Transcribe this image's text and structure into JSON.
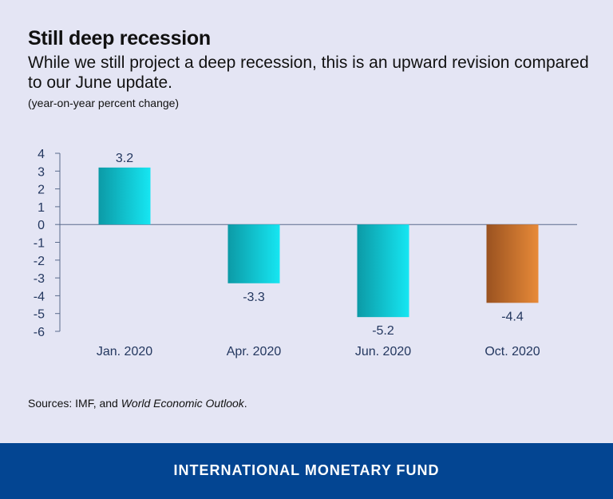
{
  "header": {
    "title": "Still deep recession",
    "subtitle": "While we still project a deep recession, this is an upward revision compared to our June update.",
    "unit_note": "(year-on-year percent change)"
  },
  "source": {
    "prefix": "Sources: IMF, and ",
    "italic": "World Economic Outlook",
    "suffix": "."
  },
  "footer": {
    "label": "INTERNATIONAL MONETARY FUND"
  },
  "colors": {
    "background": "#e4e5f4",
    "teal_bar_dark": "#0c9aa6",
    "teal_bar_light": "#16e6f2",
    "orange_bar_dark": "#9a5220",
    "orange_bar_light": "#e88a38",
    "axis": "#5a6b8c",
    "tick_label": "#23375f",
    "footer_bg": "#034592"
  },
  "chart_data": {
    "type": "bar",
    "categories": [
      "Jan. 2020",
      "Apr. 2020",
      "Jun. 2020",
      "Oct. 2020"
    ],
    "values": [
      3.2,
      -3.3,
      -5.2,
      -4.4
    ],
    "data_labels": [
      "3.2",
      "-3.3",
      "-5.2",
      "-4.4"
    ],
    "highlight": [
      false,
      false,
      false,
      true
    ],
    "ylim": [
      -6,
      4
    ],
    "yticks": [
      4,
      3,
      2,
      1,
      0,
      -1,
      -2,
      -3,
      -4,
      -5,
      -6
    ],
    "title": "Still deep recession",
    "xlabel": "",
    "ylabel": "",
    "grid": false,
    "legend": "none"
  }
}
